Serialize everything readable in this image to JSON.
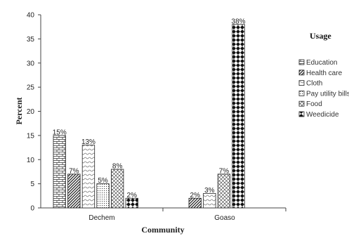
{
  "chart_data": {
    "type": "bar",
    "xlabel": "Community",
    "ylabel": "Percent",
    "ylim": [
      0,
      40
    ],
    "yticks": [
      0,
      5,
      10,
      15,
      20,
      25,
      30,
      35,
      40
    ],
    "grid": false,
    "legend_title": "Usage",
    "legend_position": "right",
    "categories": [
      "Dechem",
      "Goaso"
    ],
    "series": [
      {
        "name": "Education",
        "values": [
          15,
          0
        ],
        "labels": [
          "15%",
          ""
        ],
        "pattern": "brick"
      },
      {
        "name": "Health care",
        "values": [
          7,
          2
        ],
        "labels": [
          "7%",
          "2%"
        ],
        "pattern": "diagonal"
      },
      {
        "name": "Cloth",
        "values": [
          13,
          3
        ],
        "labels": [
          "13%",
          "3%"
        ],
        "pattern": "wave"
      },
      {
        "name": "Pay utility bills",
        "values": [
          5,
          0
        ],
        "labels": [
          "5%",
          ""
        ],
        "pattern": "dots"
      },
      {
        "name": "Food",
        "values": [
          8,
          7
        ],
        "labels": [
          "8%",
          "7%"
        ],
        "pattern": "crosshatch"
      },
      {
        "name": "Weedicide",
        "values": [
          2,
          38
        ],
        "labels": [
          "2%",
          "38%"
        ],
        "pattern": "diamond"
      }
    ]
  }
}
